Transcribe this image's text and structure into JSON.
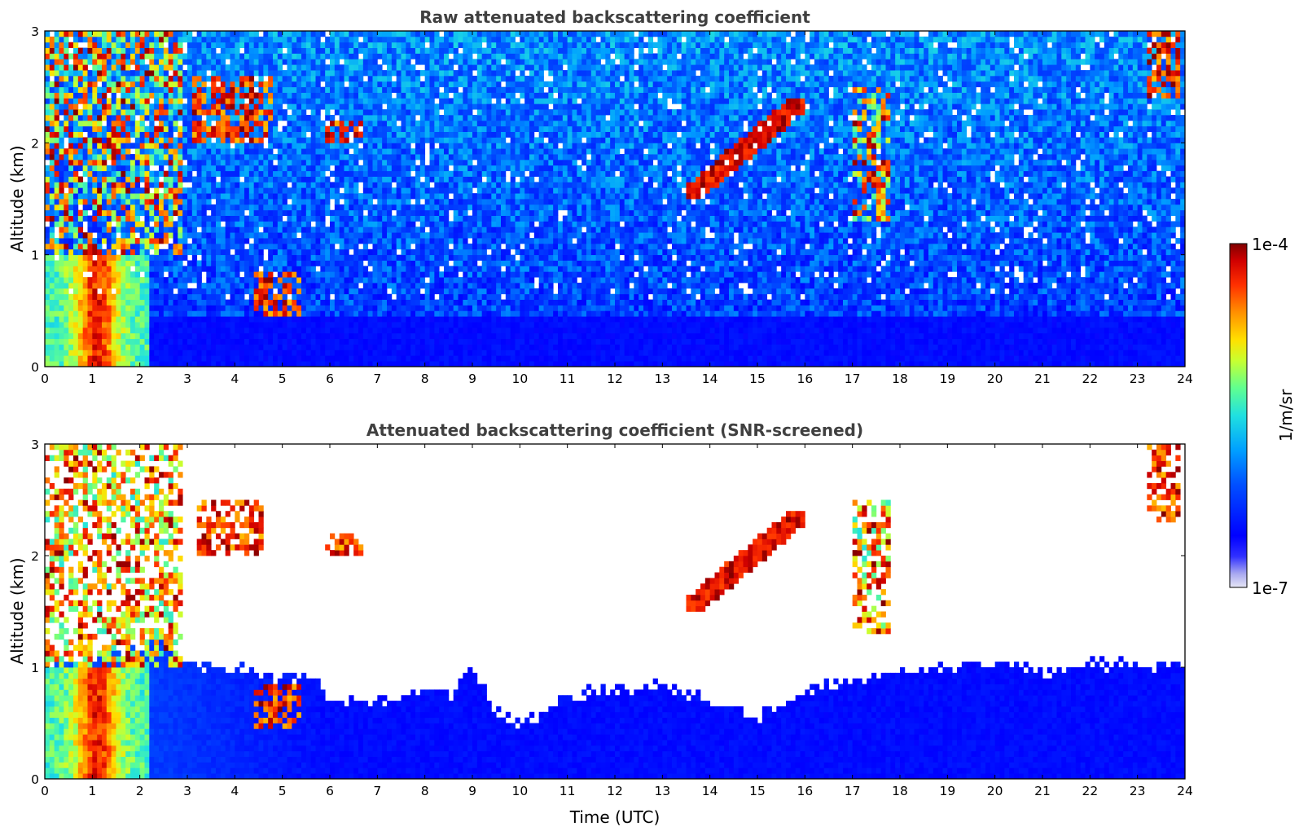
{
  "chart_data": [
    {
      "type": "heatmap",
      "title": "Raw attenuated backscattering coefficient",
      "xlabel": "",
      "ylabel": "Altitude (km)",
      "xlim": [
        0,
        24
      ],
      "ylim": [
        0,
        3
      ],
      "x_ticks": [
        "0",
        "1",
        "2",
        "3",
        "4",
        "5",
        "6",
        "7",
        "8",
        "9",
        "10",
        "11",
        "12",
        "13",
        "14",
        "15",
        "16",
        "17",
        "18",
        "19",
        "20",
        "21",
        "22",
        "23",
        "24"
      ],
      "y_ticks": [
        "0",
        "1",
        "2",
        "3"
      ],
      "colorscale": "jet, logarithmic",
      "screened": false,
      "features": [
        {
          "t": [
            0.0,
            2.2
          ],
          "z": [
            0.0,
            1.0
          ],
          "level": "high",
          "desc": "dense low aerosol/cloud layer, strongest near 1 UTC"
        },
        {
          "t": [
            0.0,
            2.9
          ],
          "z": [
            1.0,
            3.0
          ],
          "level": "high",
          "desc": "vertical streaks of strong backscatter"
        },
        {
          "t": [
            3.1,
            4.8
          ],
          "z": [
            2.0,
            2.6
          ],
          "level": "high",
          "desc": "patchy elevated cloud"
        },
        {
          "t": [
            4.4,
            5.4
          ],
          "z": [
            0.45,
            0.85
          ],
          "level": "high",
          "desc": "low cloud fragments"
        },
        {
          "t": [
            5.9,
            6.7
          ],
          "z": [
            2.0,
            2.2
          ],
          "level": "high",
          "desc": "thin cloud"
        },
        {
          "t": [
            13.5,
            16.0
          ],
          "z": [
            1.5,
            2.4
          ],
          "level": "high",
          "desc": "rising cloud layer"
        },
        {
          "t": [
            17.0,
            17.8
          ],
          "z": [
            1.3,
            2.5
          ],
          "level": "high",
          "desc": "cloud streak"
        },
        {
          "t": [
            23.2,
            23.9
          ],
          "z": [
            2.4,
            3.0
          ],
          "level": "high",
          "desc": "high cloud"
        },
        {
          "t": [
            0.0,
            24.0
          ],
          "z": [
            0.0,
            0.5
          ],
          "level": "low",
          "desc": "boundary layer (deep blue)"
        }
      ]
    },
    {
      "type": "heatmap",
      "title": "Attenuated backscattering coefficient (SNR-screened)",
      "xlabel": "Time (UTC)",
      "ylabel": "Altitude (km)",
      "xlim": [
        0,
        24
      ],
      "ylim": [
        0,
        3
      ],
      "x_ticks": [
        "0",
        "1",
        "2",
        "3",
        "4",
        "5",
        "6",
        "7",
        "8",
        "9",
        "10",
        "11",
        "12",
        "13",
        "14",
        "15",
        "16",
        "17",
        "18",
        "19",
        "20",
        "21",
        "22",
        "23",
        "24"
      ],
      "y_ticks": [
        "0",
        "1",
        "2",
        "3"
      ],
      "colorscale": "jet, logarithmic",
      "screened": true,
      "boundary_layer_top_km": [
        [
          0.0,
          1.0
        ],
        [
          2.5,
          1.2
        ],
        [
          3.2,
          1.0
        ],
        [
          4.0,
          1.0
        ],
        [
          5.0,
          0.9
        ],
        [
          5.7,
          0.95
        ],
        [
          6.0,
          0.65
        ],
        [
          7.0,
          0.7
        ],
        [
          8.0,
          0.8
        ],
        [
          8.5,
          0.75
        ],
        [
          9.0,
          1.0
        ],
        [
          9.5,
          0.6
        ],
        [
          10.0,
          0.5
        ],
        [
          10.5,
          0.6
        ],
        [
          11.0,
          0.75
        ],
        [
          12.0,
          0.8
        ],
        [
          13.0,
          0.85
        ],
        [
          14.0,
          0.7
        ],
        [
          15.0,
          0.55
        ],
        [
          16.0,
          0.8
        ],
        [
          17.0,
          0.9
        ],
        [
          18.0,
          0.95
        ],
        [
          19.0,
          1.0
        ],
        [
          20.0,
          1.05
        ],
        [
          21.0,
          0.95
        ],
        [
          22.0,
          1.05
        ],
        [
          23.0,
          1.0
        ],
        [
          24.0,
          1.05
        ]
      ],
      "features": [
        {
          "t": [
            0.0,
            2.2
          ],
          "z": [
            0.0,
            1.0
          ],
          "level": "high",
          "desc": "dense low aerosol/cloud layer"
        },
        {
          "t": [
            0.0,
            2.9
          ],
          "z": [
            1.0,
            3.0
          ],
          "level": "high",
          "desc": "vertical streaks"
        },
        {
          "t": [
            3.2,
            4.6
          ],
          "z": [
            2.0,
            2.5
          ],
          "level": "high",
          "desc": "elevated cloud"
        },
        {
          "t": [
            4.4,
            5.4
          ],
          "z": [
            0.45,
            0.85
          ],
          "level": "high",
          "desc": "low cloud fragments"
        },
        {
          "t": [
            5.9,
            6.7
          ],
          "z": [
            2.0,
            2.2
          ],
          "level": "high",
          "desc": "thin cloud"
        },
        {
          "t": [
            13.5,
            16.0
          ],
          "z": [
            1.5,
            2.4
          ],
          "level": "high",
          "desc": "rising cloud layer"
        },
        {
          "t": [
            17.0,
            17.8
          ],
          "z": [
            1.3,
            2.5
          ],
          "level": "high",
          "desc": "cloud streak"
        },
        {
          "t": [
            23.2,
            23.9
          ],
          "z": [
            2.3,
            3.0
          ],
          "level": "high",
          "desc": "high cloud"
        }
      ]
    }
  ],
  "colorbar": {
    "label": "1/m/sr",
    "max_label": "1e-4",
    "min_label": "1e-7",
    "range": [
      1e-07,
      0.0001
    ],
    "scale": "log",
    "colormap": "jet"
  }
}
